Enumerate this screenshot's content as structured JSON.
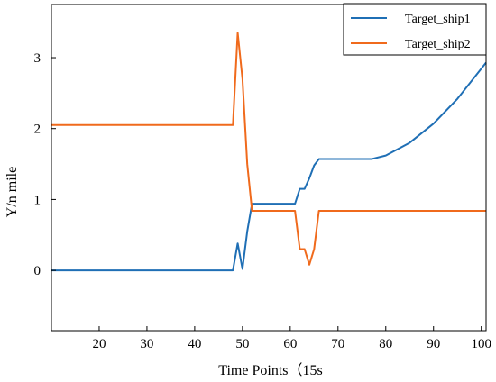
{
  "chart_data": {
    "type": "line",
    "title": "",
    "xlabel": "Time Points（15s",
    "ylabel": "Y/n mile",
    "xlim": [
      10,
      101
    ],
    "ylim": [
      -0.85,
      3.75
    ],
    "x_ticks": [
      20,
      30,
      40,
      50,
      60,
      70,
      80,
      90,
      100
    ],
    "y_ticks": [
      0,
      1,
      2,
      3
    ],
    "grid": false,
    "legend_position": "top-right",
    "series": [
      {
        "name": "Target_ship1",
        "color": "#1f6fb5",
        "points": [
          [
            10,
            0
          ],
          [
            48,
            0
          ],
          [
            49,
            0.38
          ],
          [
            50,
            0.02
          ],
          [
            51,
            0.55
          ],
          [
            52,
            0.94
          ],
          [
            61,
            0.94
          ],
          [
            62,
            1.15
          ],
          [
            63,
            1.15
          ],
          [
            64,
            1.3
          ],
          [
            65,
            1.48
          ],
          [
            66,
            1.57
          ],
          [
            77,
            1.57
          ],
          [
            80,
            1.62
          ],
          [
            85,
            1.8
          ],
          [
            90,
            2.07
          ],
          [
            95,
            2.42
          ],
          [
            101,
            2.93
          ]
        ]
      },
      {
        "name": "Target_ship2",
        "color": "#f06a1c",
        "points": [
          [
            10,
            2.05
          ],
          [
            48,
            2.05
          ],
          [
            49,
            3.35
          ],
          [
            50,
            2.7
          ],
          [
            51,
            1.5
          ],
          [
            52,
            0.84
          ],
          [
            61,
            0.84
          ],
          [
            62,
            0.3
          ],
          [
            63,
            0.3
          ],
          [
            64,
            0.08
          ],
          [
            65,
            0.3
          ],
          [
            66,
            0.84
          ],
          [
            101,
            0.84
          ]
        ]
      }
    ]
  }
}
